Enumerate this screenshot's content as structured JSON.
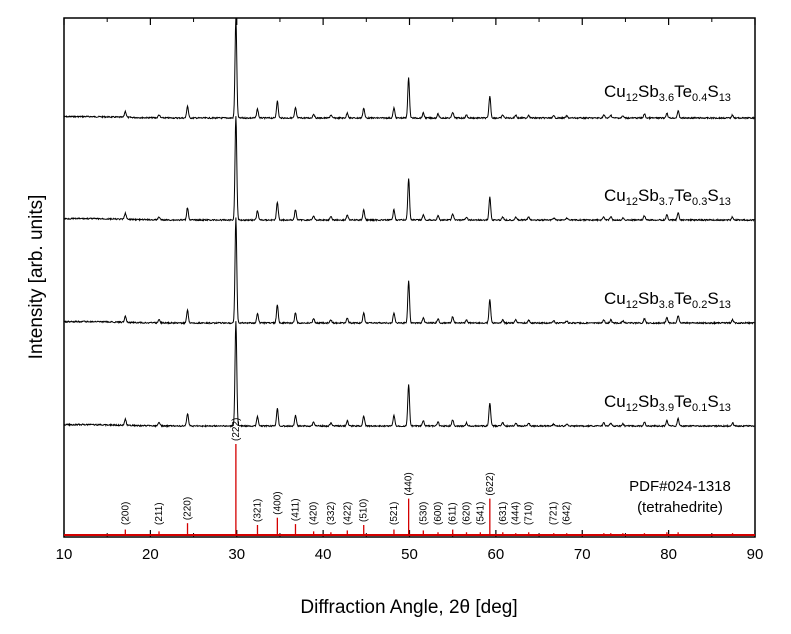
{
  "chart_data": {
    "type": "line",
    "xlabel": "Diffraction Angle, 2θ [deg]",
    "ylabel": "Intensity [arb. units]",
    "xlim": [
      10,
      90
    ],
    "x_ticks": [
      10,
      20,
      30,
      40,
      50,
      60,
      70,
      80,
      90
    ],
    "y_ticks_shown": false,
    "series": [
      {
        "base": "Cu",
        "sub1": "12",
        "el2": "Sb",
        "sub2": "3.6",
        "el3": "Te",
        "sub3": "0.4",
        "el4": "S",
        "sub4": "13",
        "scale": 1.0
      },
      {
        "base": "Cu",
        "sub1": "12",
        "el2": "Sb",
        "sub2": "3.7",
        "el3": "Te",
        "sub3": "0.3",
        "el4": "S",
        "sub4": "13",
        "scale": 1.0
      },
      {
        "base": "Cu",
        "sub1": "12",
        "el2": "Sb",
        "sub2": "3.8",
        "el3": "Te",
        "sub3": "0.2",
        "el4": "S",
        "sub4": "13",
        "scale": 1.0
      },
      {
        "base": "Cu",
        "sub1": "12",
        "el2": "Sb",
        "sub2": "3.9",
        "el3": "Te",
        "sub3": "0.1",
        "el4": "S",
        "sub4": "13",
        "scale": 1.0
      }
    ],
    "peaks": [
      {
        "x": 17.1,
        "h": 6
      },
      {
        "x": 21.0,
        "h": 3
      },
      {
        "x": 24.3,
        "h": 12
      },
      {
        "x": 29.9,
        "h": 100
      },
      {
        "x": 32.4,
        "h": 9
      },
      {
        "x": 34.7,
        "h": 17
      },
      {
        "x": 36.8,
        "h": 10
      },
      {
        "x": 38.9,
        "h": 4
      },
      {
        "x": 40.9,
        "h": 3
      },
      {
        "x": 42.8,
        "h": 5
      },
      {
        "x": 44.7,
        "h": 10
      },
      {
        "x": 48.2,
        "h": 10
      },
      {
        "x": 49.9,
        "h": 40
      },
      {
        "x": 51.6,
        "h": 5
      },
      {
        "x": 53.3,
        "h": 4
      },
      {
        "x": 55.0,
        "h": 6
      },
      {
        "x": 56.6,
        "h": 3
      },
      {
        "x": 59.3,
        "h": 22
      },
      {
        "x": 60.8,
        "h": 3
      },
      {
        "x": 62.3,
        "h": 3
      },
      {
        "x": 63.8,
        "h": 3
      },
      {
        "x": 66.7,
        "h": 2
      },
      {
        "x": 68.2,
        "h": 2
      },
      {
        "x": 72.5,
        "h": 3
      },
      {
        "x": 73.3,
        "h": 3
      },
      {
        "x": 74.7,
        "h": 2
      },
      {
        "x": 77.2,
        "h": 4
      },
      {
        "x": 79.8,
        "h": 5
      },
      {
        "x": 81.1,
        "h": 7
      },
      {
        "x": 87.4,
        "h": 3
      }
    ],
    "reference": {
      "label_line1": "PDF#024-1318",
      "label_line2": "(tetrahedrite)",
      "lines": [
        {
          "x": 17.1,
          "h": 6,
          "hkl": "(200)"
        },
        {
          "x": 21.0,
          "h": 4,
          "hkl": "(211)"
        },
        {
          "x": 24.3,
          "h": 13,
          "hkl": "(220)"
        },
        {
          "x": 29.9,
          "h": 100,
          "hkl": "(222)"
        },
        {
          "x": 32.4,
          "h": 11,
          "hkl": "(321)"
        },
        {
          "x": 34.7,
          "h": 19,
          "hkl": "(400)"
        },
        {
          "x": 36.8,
          "h": 12,
          "hkl": "(411)"
        },
        {
          "x": 38.9,
          "h": 4,
          "hkl": "(420)"
        },
        {
          "x": 40.9,
          "h": 3,
          "hkl": "(332)"
        },
        {
          "x": 42.8,
          "h": 5,
          "hkl": "(422)"
        },
        {
          "x": 44.7,
          "h": 11,
          "hkl": "(510)"
        },
        {
          "x": 48.2,
          "h": 6,
          "hkl": "(521)"
        },
        {
          "x": 49.9,
          "h": 40,
          "hkl": "(440)"
        },
        {
          "x": 51.6,
          "h": 5,
          "hkl": "(530)"
        },
        {
          "x": 53.3,
          "h": 3,
          "hkl": "(600)"
        },
        {
          "x": 55.0,
          "h": 6,
          "hkl": "(611)"
        },
        {
          "x": 56.6,
          "h": 3,
          "hkl": "(620)"
        },
        {
          "x": 58.2,
          "h": 3,
          "hkl": "(541)"
        },
        {
          "x": 59.3,
          "h": 40,
          "hkl": "(622)"
        },
        {
          "x": 60.8,
          "h": 3,
          "hkl": "(631)"
        },
        {
          "x": 62.3,
          "h": 2,
          "hkl": "(444)"
        },
        {
          "x": 63.8,
          "h": 3,
          "hkl": "(710)"
        },
        {
          "x": 66.7,
          "h": 2,
          "hkl": "(721)"
        },
        {
          "x": 68.2,
          "h": 2,
          "hkl": "(642)"
        },
        {
          "x": 72.5,
          "h": 2,
          "hkl": ""
        },
        {
          "x": 73.3,
          "h": 2,
          "hkl": ""
        },
        {
          "x": 74.7,
          "h": 2,
          "hkl": ""
        },
        {
          "x": 77.2,
          "h": 2,
          "hkl": ""
        },
        {
          "x": 79.8,
          "h": 3,
          "hkl": ""
        },
        {
          "x": 81.1,
          "h": 3,
          "hkl": ""
        },
        {
          "x": 87.4,
          "h": 2,
          "hkl": ""
        }
      ]
    },
    "colors": {
      "pattern": "#000000",
      "reference": "#d40000",
      "axis": "#000000"
    }
  }
}
